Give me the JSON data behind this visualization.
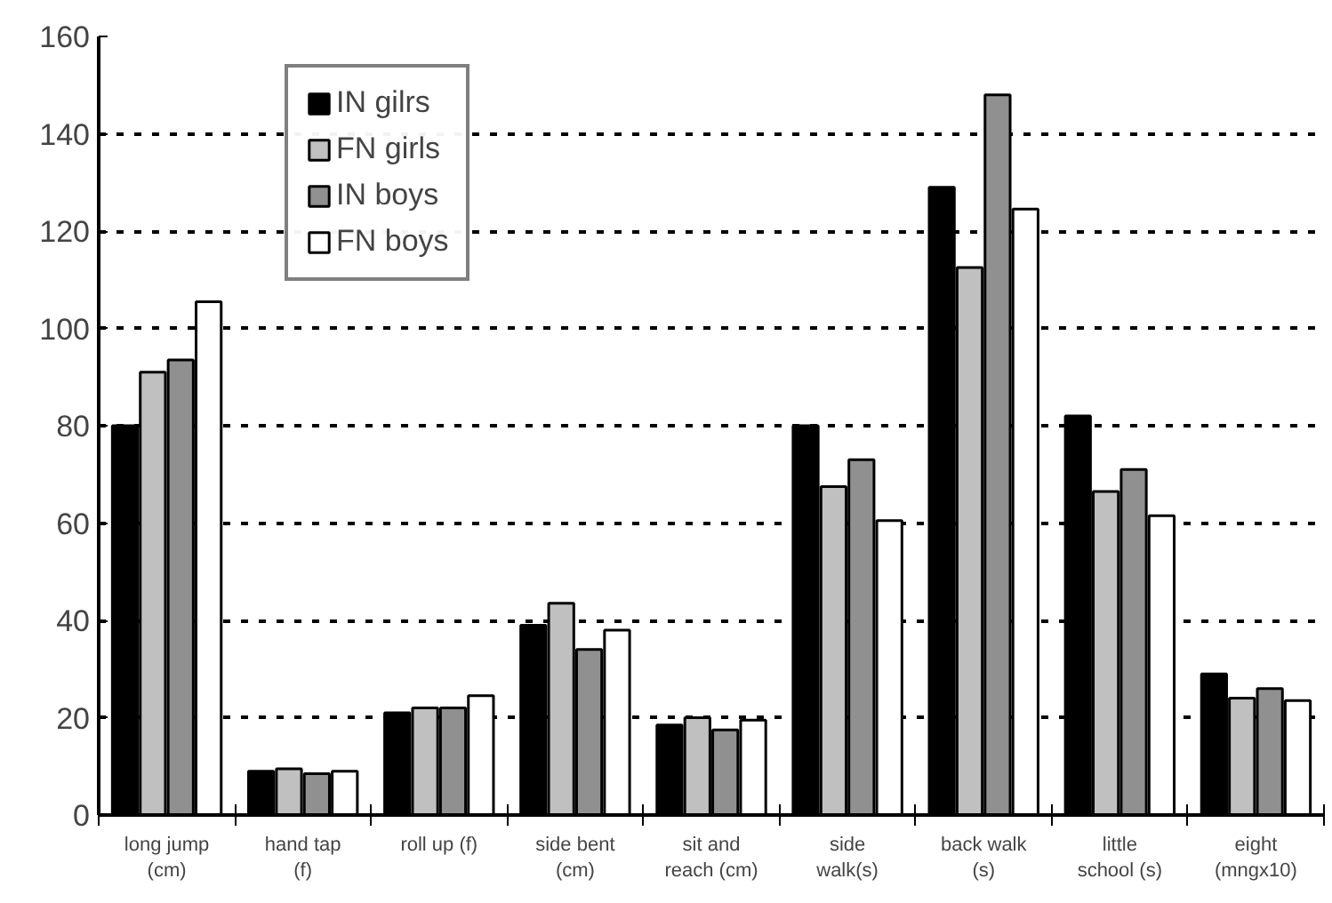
{
  "chart_data": {
    "type": "bar",
    "categories": [
      "long jump\n(cm)",
      "hand tap\n(f)",
      "roll up (f)",
      "side bent\n(cm)",
      "sit and\nreach (cm)",
      "side\nwalk(s)",
      "back walk\n(s)",
      "little\nschool (s)",
      "eight\n(mngx10)"
    ],
    "series": [
      {
        "name": "IN gilrs",
        "color": "#000000",
        "values": [
          80,
          9,
          21,
          39,
          18.5,
          80,
          129,
          82,
          29
        ]
      },
      {
        "name": "FN girls",
        "color": "#c0c0c0",
        "values": [
          91,
          9.5,
          22,
          43.5,
          20,
          67.5,
          112.5,
          66.5,
          24
        ]
      },
      {
        "name": "IN boys",
        "color": "#909090",
        "values": [
          93.5,
          8.5,
          22,
          34,
          17.5,
          73,
          148,
          71,
          26
        ]
      },
      {
        "name": "FN boys",
        "color": "#ffffff",
        "values": [
          105.5,
          9,
          24.5,
          38,
          19.5,
          60.5,
          124.5,
          61.5,
          23.5
        ]
      }
    ],
    "ylim": [
      0,
      160
    ],
    "yticks": [
      0,
      20,
      40,
      60,
      80,
      100,
      120,
      140,
      160
    ],
    "grid": "y",
    "legend": "top left"
  }
}
